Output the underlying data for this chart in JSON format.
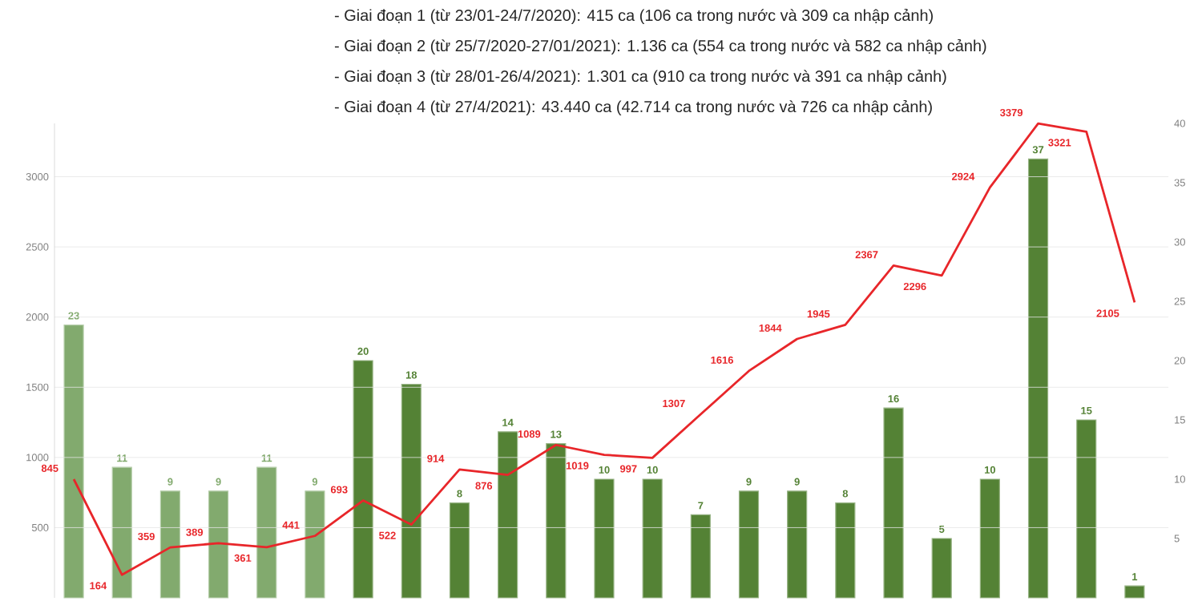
{
  "chart_data": {
    "type": "bar",
    "annotations": [
      "- Giai đoạn 1 (từ 23/01-24/7/2020): 415 ca (106 ca trong nước và 309 ca nhập cảnh)",
      "- Giai đoạn 2 (từ 25/7/2020-27/01/2021): 1.136 ca (554 ca trong nước và 582 ca nhập cảnh)",
      "- Giai đoạn 3 (từ 28/01-26/4/2021): 1.301 ca (910 ca trong nước và 391 ca nhập cảnh)",
      "- Giai đoạn 4 (từ 27/4/2021): 43.440 ca (42.714 ca trong nước và 726 ca nhập cảnh)"
    ],
    "categories": [
      null,
      null,
      null,
      null,
      null,
      null,
      null,
      null,
      null,
      null,
      null,
      null,
      null,
      null,
      null,
      null,
      null,
      null,
      null,
      null,
      null,
      null,
      null
    ],
    "series": [
      {
        "axis": "y2",
        "colors": [
          "#82aa6e",
          "#82aa6e",
          "#82aa6e",
          "#82aa6e",
          "#82aa6e",
          "#82aa6e",
          "#548235",
          "#548235",
          "#548235",
          "#548235",
          "#548235",
          "#548235",
          "#548235",
          "#548235",
          "#548235",
          "#548235",
          "#548235",
          "#548235",
          "#548235",
          "#548235",
          "#548235",
          "#548235",
          "#548235"
        ],
        "values": [
          23,
          11,
          9,
          9,
          11,
          9,
          20,
          18,
          8,
          14,
          13,
          10,
          10,
          7,
          9,
          9,
          8,
          16,
          5,
          10,
          37,
          15,
          1
        ]
      },
      {
        "type": "line",
        "color": "#e8262a",
        "values": [
          845,
          164,
          359,
          389,
          361,
          441,
          693,
          522,
          914,
          876,
          1089,
          1019,
          997,
          1307,
          1616,
          1844,
          1945,
          2367,
          2296,
          2924,
          3379,
          3321,
          2105
        ]
      }
    ],
    "ylim": [
      0,
      3380
    ],
    "yticks": [
      500,
      1000,
      1500,
      2000,
      2500,
      3000
    ],
    "y2lim": [
      0,
      40
    ],
    "y2ticks": [
      5,
      10,
      15,
      20,
      25,
      30,
      35,
      40
    ],
    "grid": "y",
    "data_labels": true,
    "tick_labels": "y",
    "marker": "none",
    "line_style": "solid"
  }
}
